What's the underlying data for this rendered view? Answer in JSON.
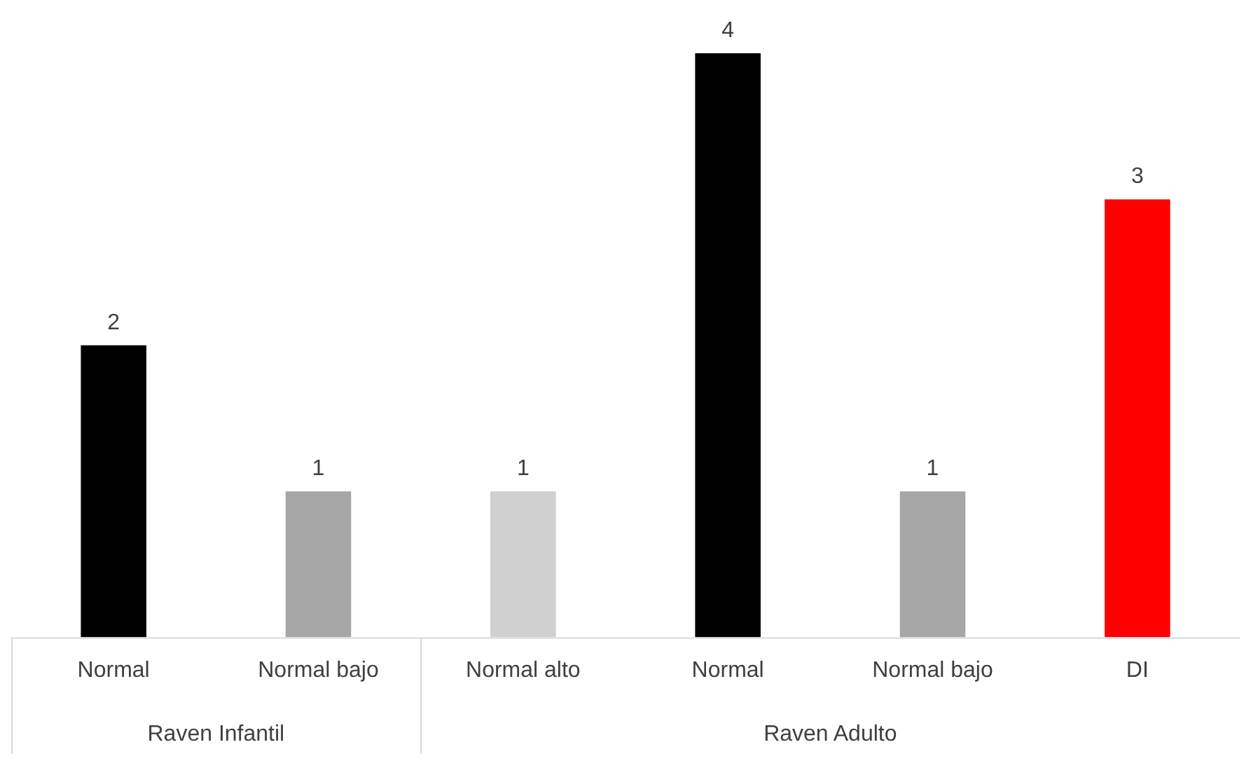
{
  "chart_data": {
    "type": "bar",
    "categories": [
      "Normal",
      "Normal bajo",
      "Normal alto",
      "Normal",
      "Normal bajo",
      "DI"
    ],
    "values": [
      2,
      1,
      1,
      4,
      1,
      3
    ],
    "colors": [
      "#000000",
      "#a6a6a6",
      "#d0d0d0",
      "#000000",
      "#a6a6a6",
      "#ff0000"
    ],
    "data_labels": true,
    "grid": false,
    "legend": false,
    "annotations": [
      "Raven Infantil",
      "Raven Adulto"
    ]
  }
}
